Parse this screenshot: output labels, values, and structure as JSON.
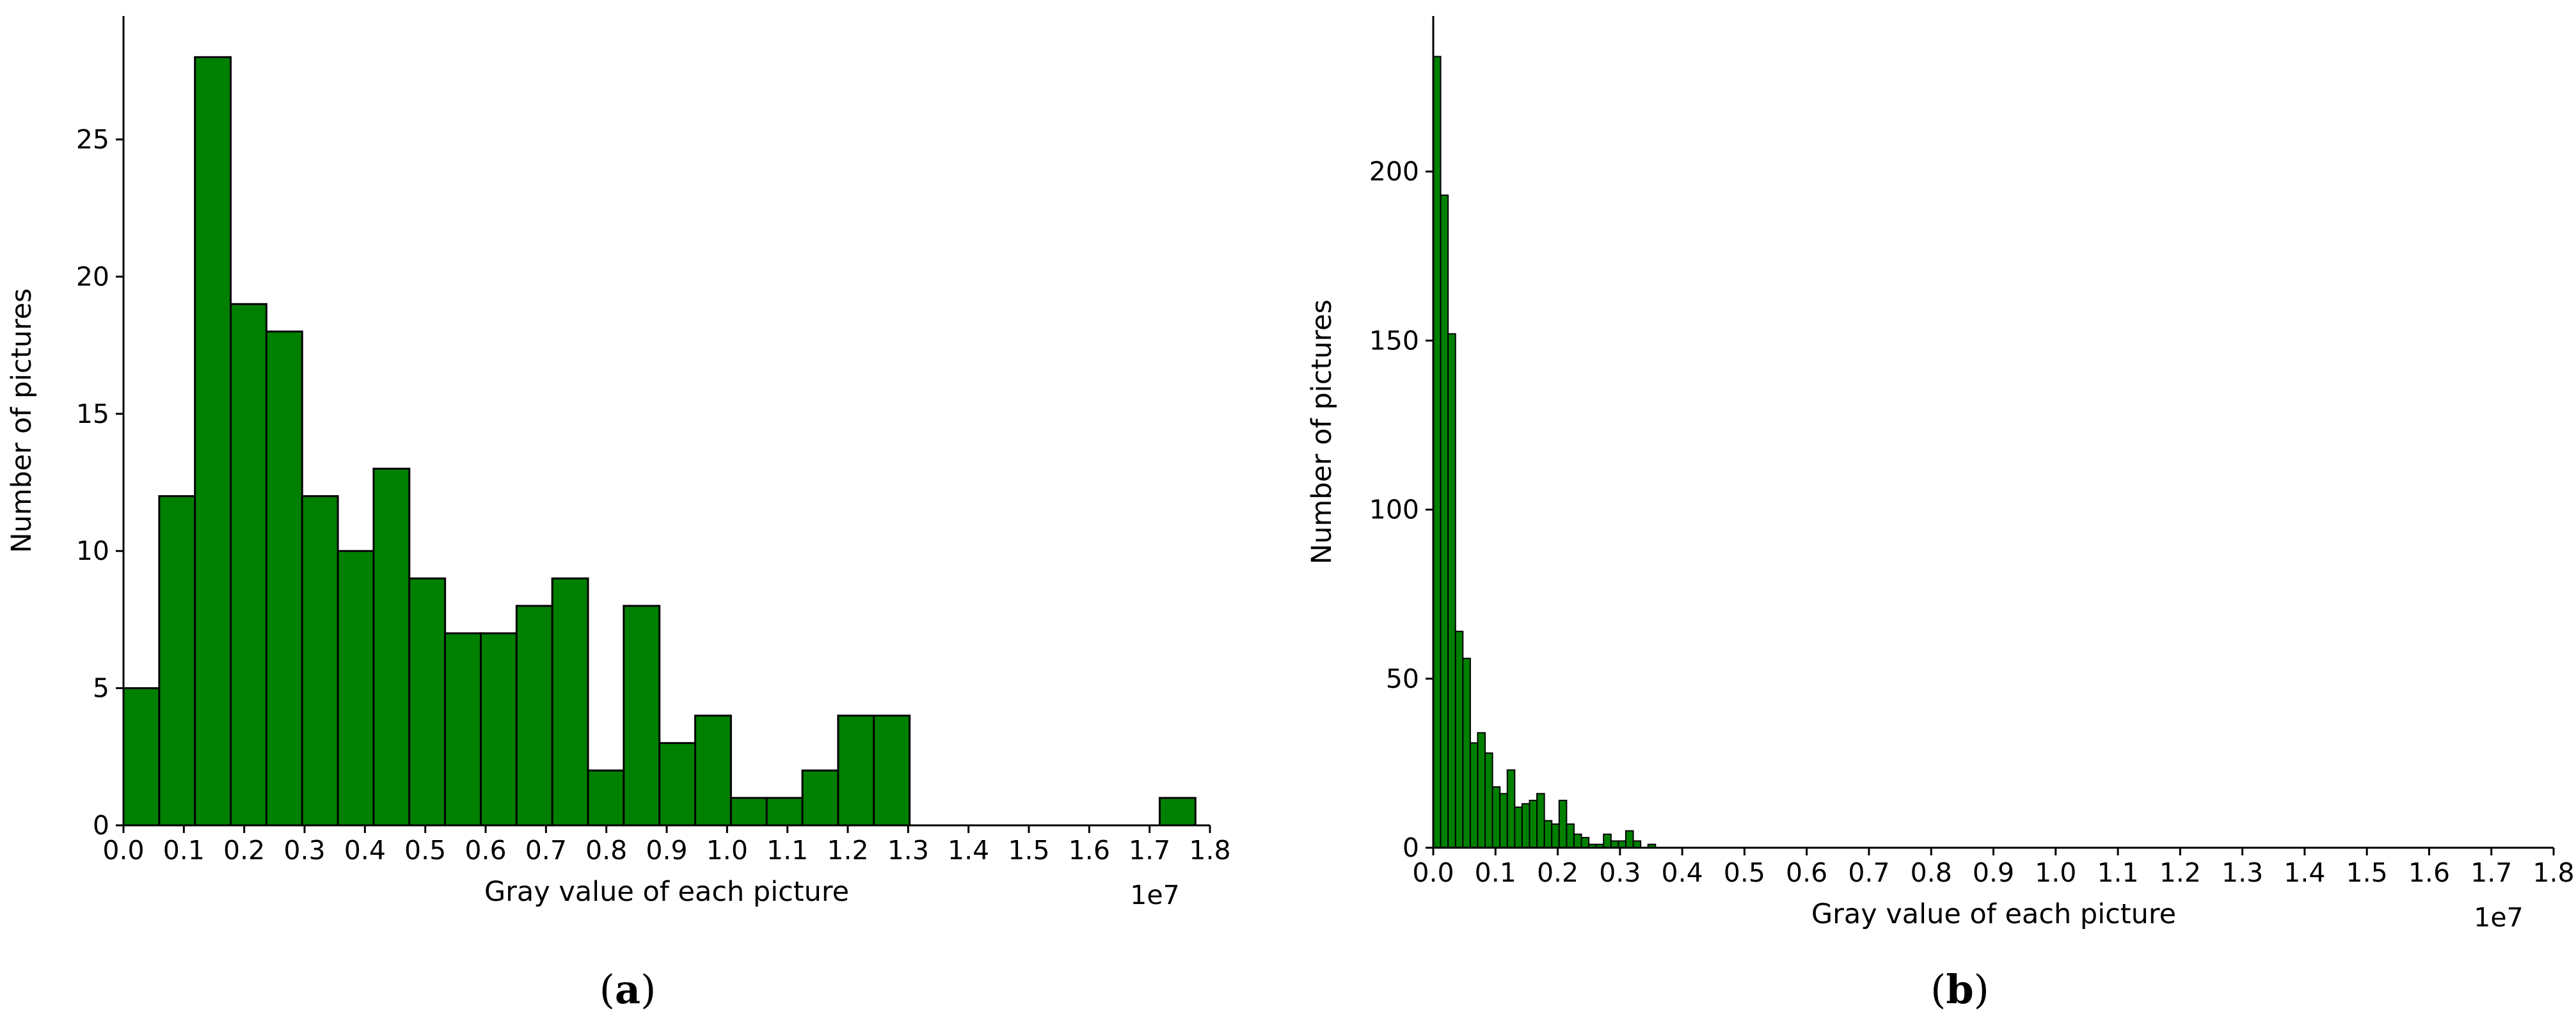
{
  "chart_data": [
    {
      "type": "bar",
      "histogram": true,
      "panel": "a",
      "xlabel": "Gray value of each picture",
      "ylabel": "Number of pictures",
      "x_offset_label": "1e7",
      "xlim": [
        0,
        1.8
      ],
      "ylim": [
        0,
        29.5
      ],
      "xticks": [
        0.0,
        0.1,
        0.2,
        0.3,
        0.4,
        0.5,
        0.6,
        0.7,
        0.8,
        0.9,
        1.0,
        1.1,
        1.2,
        1.3,
        1.4,
        1.5,
        1.6,
        1.7,
        1.8
      ],
      "xtick_labels": [
        "0.0",
        "0.1",
        "0.2",
        "0.3",
        "0.4",
        "0.5",
        "0.6",
        "0.7",
        "0.8",
        "0.9",
        "1.0",
        "1.1",
        "1.2",
        "1.3",
        "1.4",
        "1.5",
        "1.6",
        "1.7",
        "1.8"
      ],
      "yticks": [
        0,
        5,
        10,
        15,
        20,
        25
      ],
      "ytick_labels": [
        "0",
        "5",
        "10",
        "15",
        "20",
        "25"
      ],
      "bin_start": 0.0,
      "bin_width": 0.0592,
      "values": [
        5,
        12,
        28,
        19,
        18,
        12,
        10,
        13,
        9,
        7,
        7,
        8,
        9,
        2,
        8,
        3,
        4,
        1,
        1,
        2,
        4,
        4,
        0,
        0,
        0,
        0,
        0,
        0,
        0,
        1
      ],
      "bar_color": "#008000",
      "edge_color": "#000000",
      "grid": false
    },
    {
      "type": "bar",
      "histogram": true,
      "panel": "b",
      "xlabel": "Gray value of each picture",
      "ylabel": "Number of pictures",
      "x_offset_label": "1e7",
      "xlim": [
        0,
        1.8
      ],
      "ylim": [
        0,
        246
      ],
      "xticks": [
        0.0,
        0.1,
        0.2,
        0.3,
        0.4,
        0.5,
        0.6,
        0.7,
        0.8,
        0.9,
        1.0,
        1.1,
        1.2,
        1.3,
        1.4,
        1.5,
        1.6,
        1.7,
        1.8
      ],
      "xtick_labels": [
        "0.0",
        "0.1",
        "0.2",
        "0.3",
        "0.4",
        "0.5",
        "0.6",
        "0.7",
        "0.8",
        "0.9",
        "1.0",
        "1.1",
        "1.2",
        "1.3",
        "1.4",
        "1.5",
        "1.6",
        "1.7",
        "1.8"
      ],
      "yticks": [
        0,
        50,
        100,
        150,
        200
      ],
      "ytick_labels": [
        "0",
        "50",
        "100",
        "150",
        "200"
      ],
      "bin_start": 0.0,
      "bin_width": 0.0119,
      "values": [
        234,
        193,
        152,
        64,
        56,
        31,
        34,
        28,
        18,
        16,
        23,
        12,
        13,
        14,
        16,
        8,
        7,
        14,
        7,
        4,
        3,
        1,
        1,
        4,
        2,
        2,
        5,
        2,
        0,
        1
      ],
      "bar_color": "#008000",
      "edge_color": "#000000",
      "grid": false
    }
  ],
  "panel_labels": [
    "a",
    "b"
  ]
}
